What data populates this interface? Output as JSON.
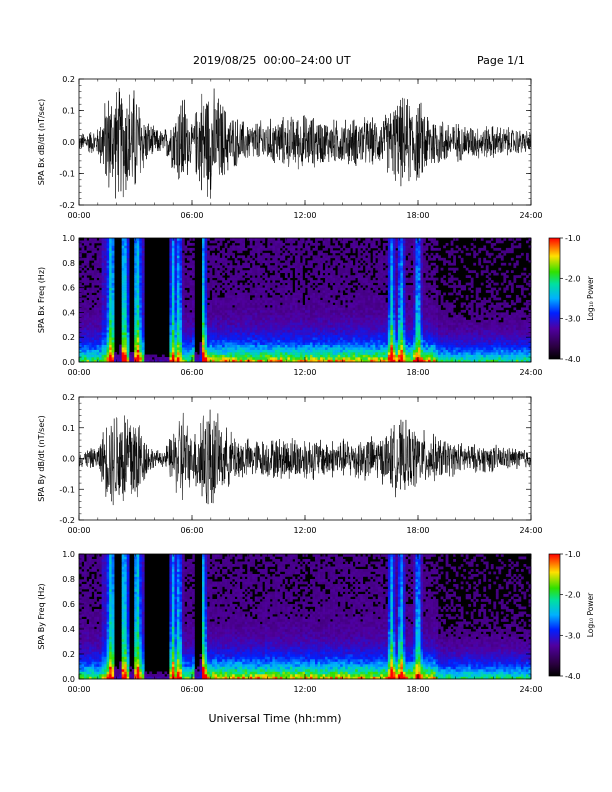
{
  "header": {
    "title": "2019/08/25  00:00–24:00 UT",
    "page": "Page 1/1"
  },
  "chart_data": [
    {
      "type": "line",
      "ylabel": "SPA Bx dB/dt (nT/sec)",
      "ylim": [
        -0.2,
        0.2
      ],
      "xlim": [
        0,
        24
      ],
      "yticks": [
        "-0.2",
        "-0.1",
        "0.0",
        "0.1",
        "0.2"
      ],
      "xticks": [
        "00:00",
        "06:00",
        "12:00",
        "18:00",
        "24:00"
      ],
      "series": [
        {
          "x": [
            0,
            1,
            1.5,
            2,
            2.5,
            3,
            3.5,
            4,
            4.5,
            5,
            5.5,
            6,
            6.5,
            7,
            7.5,
            8,
            9,
            10,
            11,
            12,
            13,
            14,
            15,
            16,
            17,
            18,
            19,
            20,
            21,
            22,
            23,
            24
          ],
          "amplitude": [
            0.03,
            0.05,
            0.18,
            0.2,
            0.2,
            0.2,
            0.09,
            0.05,
            0.04,
            0.1,
            0.2,
            0.06,
            0.2,
            0.2,
            0.16,
            0.1,
            0.07,
            0.08,
            0.09,
            0.1,
            0.08,
            0.08,
            0.09,
            0.08,
            0.16,
            0.15,
            0.09,
            0.07,
            0.06,
            0.06,
            0.05,
            0.04
          ]
        }
      ]
    },
    {
      "type": "heatmap",
      "ylabel": "SPA Bx Freq (Hz)",
      "ylim": [
        0,
        1.0
      ],
      "xlim": [
        0,
        24
      ],
      "yticks": [
        "0.0",
        "0.2",
        "0.4",
        "0.6",
        "0.8",
        "1.0"
      ],
      "xticks": [
        "00:00",
        "06:00",
        "12:00",
        "18:00",
        "24:00"
      ],
      "colorbar": {
        "label": "Log₁₀ Power",
        "ticks": [
          "-1.0",
          "-2.0",
          "-3.0",
          "-4.0"
        ],
        "range": [
          -4.0,
          -1.0
        ]
      },
      "bright_bands_hours": [
        1.7,
        2.4,
        3.1,
        5.0,
        5.3,
        6.6,
        16.6,
        17.1,
        18.0
      ]
    },
    {
      "type": "line",
      "ylabel": "SPA By dB/dt (nT/sec)",
      "ylim": [
        -0.2,
        0.2
      ],
      "xlim": [
        0,
        24
      ],
      "yticks": [
        "-0.2",
        "-0.1",
        "0.0",
        "0.1",
        "0.2"
      ],
      "xticks": [
        "00:00",
        "06:00",
        "12:00",
        "18:00",
        "24:00"
      ],
      "series": [
        {
          "x": [
            0,
            1,
            1.5,
            2,
            2.5,
            3,
            3.5,
            4,
            4.5,
            5,
            5.5,
            6,
            6.5,
            7,
            7.5,
            8,
            9,
            10,
            11,
            12,
            13,
            14,
            15,
            16,
            17,
            18,
            19,
            20,
            21,
            22,
            23,
            24
          ],
          "amplitude": [
            0.03,
            0.04,
            0.15,
            0.2,
            0.2,
            0.2,
            0.08,
            0.03,
            0.03,
            0.1,
            0.2,
            0.07,
            0.2,
            0.2,
            0.13,
            0.1,
            0.07,
            0.07,
            0.08,
            0.08,
            0.07,
            0.07,
            0.08,
            0.08,
            0.14,
            0.11,
            0.08,
            0.06,
            0.05,
            0.05,
            0.04,
            0.04
          ]
        }
      ]
    },
    {
      "type": "heatmap",
      "ylabel": "SPA By Freq (Hz)",
      "ylim": [
        0,
        1.0
      ],
      "xlim": [
        0,
        24
      ],
      "yticks": [
        "0.0",
        "0.2",
        "0.4",
        "0.6",
        "0.8",
        "1.0"
      ],
      "xticks": [
        "00:00",
        "06:00",
        "12:00",
        "18:00",
        "24:00"
      ],
      "colorbar": {
        "label": "Log₁₀ Power",
        "ticks": [
          "-1.0",
          "-2.0",
          "-3.0",
          "-4.0"
        ],
        "range": [
          -4.0,
          -1.0
        ]
      },
      "bright_bands_hours": [
        1.7,
        2.4,
        3.1,
        5.0,
        5.3,
        6.6,
        16.6,
        17.1,
        18.0
      ]
    }
  ],
  "xlabel": "Universal Time (hh:mm)"
}
